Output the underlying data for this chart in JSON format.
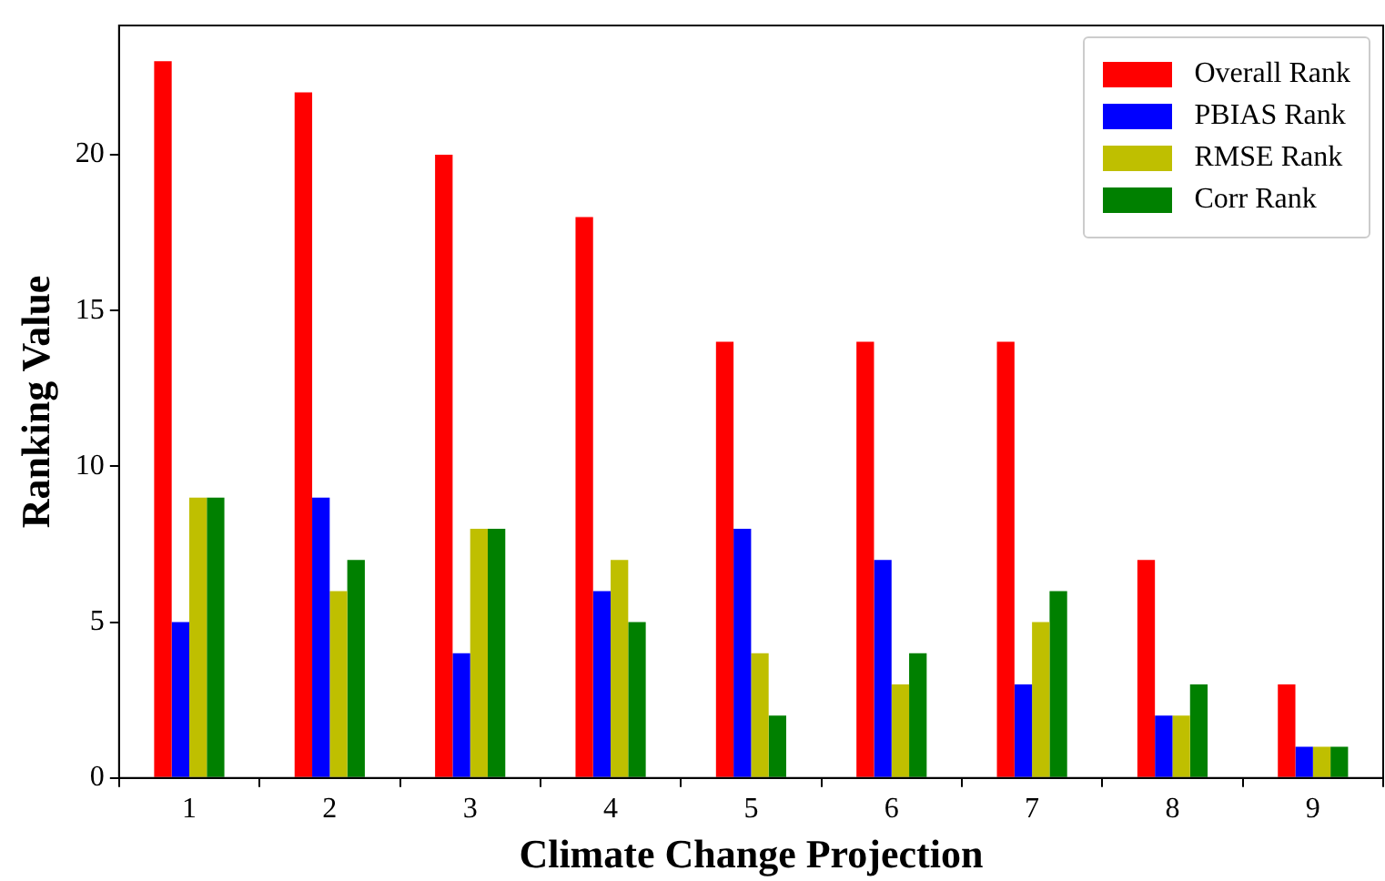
{
  "chart_data": {
    "type": "bar",
    "xlabel": "Climate Change Projection",
    "ylabel": "Ranking Value",
    "categories": [
      "1",
      "2",
      "3",
      "4",
      "5",
      "6",
      "7",
      "8",
      "9"
    ],
    "series": [
      {
        "name": "Overall Rank",
        "color": "#ff0000",
        "values": [
          23,
          22,
          20,
          18,
          14,
          14,
          14,
          7,
          3
        ]
      },
      {
        "name": "PBIAS Rank",
        "color": "#0000ff",
        "values": [
          5,
          9,
          4,
          6,
          8,
          7,
          3,
          2,
          1
        ]
      },
      {
        "name": "RMSE Rank",
        "color": "#bfbf00",
        "values": [
          9,
          6,
          8,
          7,
          4,
          3,
          5,
          2,
          1
        ]
      },
      {
        "name": "Corr Rank",
        "color": "#008000",
        "values": [
          9,
          7,
          8,
          5,
          2,
          4,
          6,
          3,
          1
        ]
      }
    ],
    "ylim": [
      0,
      24.15
    ],
    "yticks": [
      0,
      5,
      10,
      15,
      20
    ],
    "grid": false,
    "legend": "top right"
  }
}
